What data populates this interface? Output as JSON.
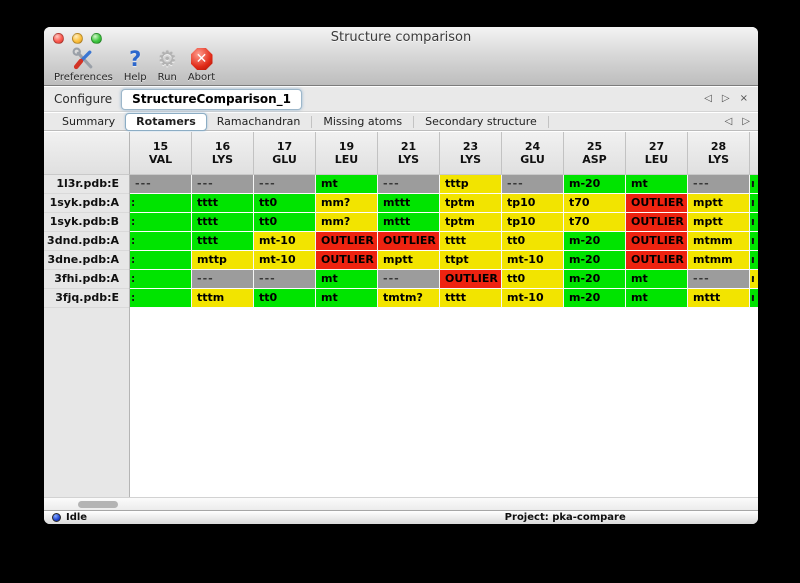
{
  "window": {
    "title": "Structure comparison"
  },
  "toolbar": {
    "items": [
      {
        "label": "Preferences",
        "icon": "tools-icon"
      },
      {
        "label": "Help",
        "icon": "question-mark-icon",
        "glyph": "?"
      },
      {
        "label": "Run",
        "icon": "gear-icon",
        "glyph": "⚙"
      },
      {
        "label": "Abort",
        "icon": "abort-x-icon",
        "glyph": "✕"
      }
    ]
  },
  "configure": {
    "label": "Configure",
    "value": "StructureComparison_1",
    "nav": {
      "back": "◁",
      "forward": "▷",
      "close": "×"
    }
  },
  "tabs": {
    "items": [
      {
        "label": "Summary"
      },
      {
        "label": "Rotamers"
      },
      {
        "label": "Ramachandran"
      },
      {
        "label": "Missing atoms"
      },
      {
        "label": "Secondary structure"
      }
    ],
    "selected": "Rotamers",
    "nav": {
      "back": "◁",
      "forward": "▷"
    }
  },
  "table": {
    "columns": [
      {
        "num": "15",
        "res": "VAL"
      },
      {
        "num": "16",
        "res": "LYS"
      },
      {
        "num": "17",
        "res": "GLU"
      },
      {
        "num": "19",
        "res": "LEU"
      },
      {
        "num": "21",
        "res": "LYS"
      },
      {
        "num": "23",
        "res": "LYS"
      },
      {
        "num": "24",
        "res": "GLU"
      },
      {
        "num": "25",
        "res": "ASP"
      },
      {
        "num": "27",
        "res": "LEU"
      },
      {
        "num": "28",
        "res": "LYS"
      }
    ],
    "status_colors": {
      "favored": "#00e400",
      "allowed": "#f2e400",
      "outlier": "#ee2310",
      "missing": "#9c9c9c"
    },
    "rows": [
      {
        "label": "1l3r.pdb:E",
        "left_fragment": "",
        "right_sliver": "favored",
        "right_fragment": "m",
        "cells": [
          {
            "text": "---",
            "status": "missing"
          },
          {
            "text": "---",
            "status": "missing"
          },
          {
            "text": "---",
            "status": "missing"
          },
          {
            "text": "mt",
            "status": "favored"
          },
          {
            "text": "---",
            "status": "missing"
          },
          {
            "text": "tttp",
            "status": "allowed"
          },
          {
            "text": "---",
            "status": "missing"
          },
          {
            "text": "m-20",
            "status": "favored"
          },
          {
            "text": "mt",
            "status": "favored"
          },
          {
            "text": "---",
            "status": "missing"
          }
        ]
      },
      {
        "label": "1syk.pdb:A",
        "left_fragment": ":",
        "right_sliver": "favored",
        "right_fragment": "m",
        "cells": [
          {
            "text": "",
            "status": "favored"
          },
          {
            "text": "tttt",
            "status": "favored"
          },
          {
            "text": "tt0",
            "status": "favored"
          },
          {
            "text": "mm?",
            "status": "allowed"
          },
          {
            "text": "mttt",
            "status": "favored"
          },
          {
            "text": "tptm",
            "status": "allowed"
          },
          {
            "text": "tp10",
            "status": "allowed"
          },
          {
            "text": "t70",
            "status": "allowed"
          },
          {
            "text": "OUTLIER",
            "status": "outlier"
          },
          {
            "text": "mptt",
            "status": "allowed"
          }
        ]
      },
      {
        "label": "1syk.pdb:B",
        "left_fragment": ":",
        "right_sliver": "favored",
        "right_fragment": "m",
        "cells": [
          {
            "text": "",
            "status": "favored"
          },
          {
            "text": "tttt",
            "status": "favored"
          },
          {
            "text": "tt0",
            "status": "favored"
          },
          {
            "text": "mm?",
            "status": "allowed"
          },
          {
            "text": "mttt",
            "status": "favored"
          },
          {
            "text": "tptm",
            "status": "allowed"
          },
          {
            "text": "tp10",
            "status": "allowed"
          },
          {
            "text": "t70",
            "status": "allowed"
          },
          {
            "text": "OUTLIER",
            "status": "outlier"
          },
          {
            "text": "mptt",
            "status": "allowed"
          }
        ]
      },
      {
        "label": "3dnd.pdb:A",
        "left_fragment": ":",
        "right_sliver": "favored",
        "right_fragment": "m",
        "cells": [
          {
            "text": "",
            "status": "favored"
          },
          {
            "text": "tttt",
            "status": "favored"
          },
          {
            "text": "mt-10",
            "status": "allowed"
          },
          {
            "text": "OUTLIER",
            "status": "outlier"
          },
          {
            "text": "OUTLIER",
            "status": "outlier"
          },
          {
            "text": "tttt",
            "status": "allowed"
          },
          {
            "text": "tt0",
            "status": "allowed"
          },
          {
            "text": "m-20",
            "status": "favored"
          },
          {
            "text": "OUTLIER",
            "status": "outlier"
          },
          {
            "text": "mtmm",
            "status": "allowed"
          }
        ]
      },
      {
        "label": "3dne.pdb:A",
        "left_fragment": ":",
        "right_sliver": "favored",
        "right_fragment": "m",
        "cells": [
          {
            "text": "",
            "status": "favored"
          },
          {
            "text": "mttp",
            "status": "allowed"
          },
          {
            "text": "mt-10",
            "status": "allowed"
          },
          {
            "text": "OUTLIER",
            "status": "outlier"
          },
          {
            "text": "mptt",
            "status": "allowed"
          },
          {
            "text": "ttpt",
            "status": "allowed"
          },
          {
            "text": "mt-10",
            "status": "allowed"
          },
          {
            "text": "m-20",
            "status": "favored"
          },
          {
            "text": "OUTLIER",
            "status": "outlier"
          },
          {
            "text": "mtmm",
            "status": "allowed"
          }
        ]
      },
      {
        "label": "3fhi.pdb:A",
        "left_fragment": ":",
        "right_sliver": "allowed",
        "right_fragment": "m",
        "cells": [
          {
            "text": "",
            "status": "favored"
          },
          {
            "text": "---",
            "status": "missing"
          },
          {
            "text": "---",
            "status": "missing"
          },
          {
            "text": "mt",
            "status": "favored"
          },
          {
            "text": "---",
            "status": "missing"
          },
          {
            "text": "OUTLIER",
            "status": "outlier"
          },
          {
            "text": "tt0",
            "status": "allowed"
          },
          {
            "text": "m-20",
            "status": "favored"
          },
          {
            "text": "mt",
            "status": "favored"
          },
          {
            "text": "---",
            "status": "missing"
          }
        ]
      },
      {
        "label": "3fjq.pdb:E",
        "left_fragment": ":",
        "right_sliver": "favored",
        "right_fragment": "m",
        "cells": [
          {
            "text": "",
            "status": "favored"
          },
          {
            "text": "tttm",
            "status": "allowed"
          },
          {
            "text": "tt0",
            "status": "favored"
          },
          {
            "text": "mt",
            "status": "favored"
          },
          {
            "text": "tmtm?",
            "status": "allowed"
          },
          {
            "text": "tttt",
            "status": "allowed"
          },
          {
            "text": "mt-10",
            "status": "allowed"
          },
          {
            "text": "m-20",
            "status": "favored"
          },
          {
            "text": "mt",
            "status": "favored"
          },
          {
            "text": "mttt",
            "status": "allowed"
          }
        ]
      }
    ]
  },
  "statusbar": {
    "status": "Idle",
    "project": "Project: pka-compare"
  }
}
